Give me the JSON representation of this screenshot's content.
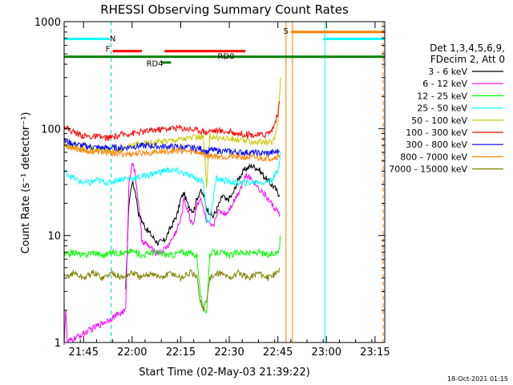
{
  "chart_data": {
    "type": "line",
    "title": "RHESSI Observing Summary Count Rates",
    "xlabel": "Start Time (02-May-03 21:39:22)",
    "ylabel": "Count Rate (s⁻¹ detector⁻¹)",
    "yscale": "log",
    "ylim": [
      1,
      1000
    ],
    "xlim": [
      0,
      99
    ],
    "y_ticks": [
      {
        "v": 1,
        "label": "1"
      },
      {
        "v": 10,
        "label": "10"
      },
      {
        "v": 100,
        "label": "100"
      },
      {
        "v": 1000,
        "label": "1000"
      }
    ],
    "x_ticks": [
      {
        "t": 6,
        "label": "21:45"
      },
      {
        "t": 21,
        "label": "22:00"
      },
      {
        "t": 36,
        "label": "22:15"
      },
      {
        "t": 51,
        "label": "22:30"
      },
      {
        "t": 66,
        "label": "22:45"
      },
      {
        "t": 81,
        "label": "23:00"
      },
      {
        "t": 96,
        "label": "23:15"
      }
    ],
    "legend_header": [
      "Det 1,3,4,5,6,9,",
      "FDecim 2, Att 0"
    ],
    "series": [
      {
        "name": "3 - 6 keV",
        "color": "#000000",
        "pts": [
          [
            19,
            3
          ],
          [
            20,
            20
          ],
          [
            21,
            32
          ],
          [
            22,
            26
          ],
          [
            23,
            16
          ],
          [
            25,
            12
          ],
          [
            27,
            10
          ],
          [
            29,
            8.5
          ],
          [
            31,
            9
          ],
          [
            33,
            12
          ],
          [
            35,
            16
          ],
          [
            36,
            22
          ],
          [
            37,
            25
          ],
          [
            38,
            20
          ],
          [
            39,
            18
          ],
          [
            40,
            17
          ],
          [
            41,
            22
          ],
          [
            42,
            26
          ],
          [
            43,
            24
          ],
          [
            44,
            18
          ],
          [
            46,
            15
          ],
          [
            48,
            20
          ],
          [
            49,
            24
          ],
          [
            50,
            21
          ],
          [
            52,
            24
          ],
          [
            54,
            35
          ],
          [
            56,
            42
          ],
          [
            58,
            45
          ],
          [
            60,
            42
          ],
          [
            62,
            35
          ],
          [
            64,
            30
          ],
          [
            65,
            28
          ],
          [
            66,
            25
          ],
          [
            66.5,
            24
          ]
        ]
      },
      {
        "name": "6 - 12 keV",
        "color": "#ff00ff",
        "pts": [
          [
            0,
            1
          ],
          [
            0.5,
            2
          ],
          [
            1,
            1
          ],
          [
            19,
            2
          ],
          [
            20,
            30
          ],
          [
            21,
            50
          ],
          [
            22,
            36
          ],
          [
            23,
            20
          ],
          [
            24,
            9
          ],
          [
            26,
            8
          ],
          [
            28,
            7
          ],
          [
            30,
            7
          ],
          [
            32,
            8
          ],
          [
            34,
            10
          ],
          [
            36,
            14
          ],
          [
            37,
            22
          ],
          [
            38,
            18
          ],
          [
            39,
            14
          ],
          [
            40,
            13
          ],
          [
            41,
            20
          ],
          [
            42,
            22
          ],
          [
            43,
            18
          ],
          [
            44,
            13
          ],
          [
            46,
            12
          ],
          [
            47,
            16
          ],
          [
            48,
            17
          ],
          [
            50,
            16
          ],
          [
            52,
            20
          ],
          [
            54,
            26
          ],
          [
            56,
            36
          ],
          [
            58,
            34
          ],
          [
            60,
            28
          ],
          [
            62,
            24
          ],
          [
            64,
            20
          ],
          [
            65,
            18
          ],
          [
            66,
            17
          ],
          [
            66.5,
            15
          ]
        ]
      },
      {
        "name": "12 - 25 keV",
        "color": "#00ff00",
        "pts": [
          [
            0,
            6.5
          ],
          [
            3,
            7
          ],
          [
            6,
            6.5
          ],
          [
            9,
            7
          ],
          [
            12,
            6.5
          ],
          [
            15,
            7
          ],
          [
            18,
            6.8
          ],
          [
            21,
            7.2
          ],
          [
            24,
            6.5
          ],
          [
            27,
            7
          ],
          [
            30,
            6.8
          ],
          [
            33,
            6.5
          ],
          [
            36,
            7
          ],
          [
            39,
            6.8
          ],
          [
            41,
            6.5
          ],
          [
            42,
            3
          ],
          [
            43,
            2
          ],
          [
            44,
            2
          ],
          [
            45,
            6.8
          ],
          [
            48,
            7
          ],
          [
            51,
            6.5
          ],
          [
            54,
            7
          ],
          [
            57,
            6.8
          ],
          [
            60,
            7
          ],
          [
            63,
            6.5
          ],
          [
            66,
            7
          ],
          [
            66.5,
            8
          ],
          [
            66.7,
            10
          ]
        ]
      },
      {
        "name": "25 - 50 keV",
        "color": "#00ffff",
        "pts": [
          [
            0,
            40
          ],
          [
            2,
            36
          ],
          [
            4,
            33
          ],
          [
            6,
            31
          ],
          [
            8,
            31
          ],
          [
            10,
            33
          ],
          [
            12,
            32
          ],
          [
            14,
            31
          ],
          [
            16,
            33
          ],
          [
            18,
            34
          ],
          [
            20,
            34
          ],
          [
            23,
            35
          ],
          [
            26,
            37
          ],
          [
            29,
            39
          ],
          [
            32,
            41
          ],
          [
            35,
            40
          ],
          [
            37,
            38
          ],
          [
            39,
            36
          ],
          [
            40,
            35
          ],
          [
            41,
            34
          ],
          [
            43,
            32
          ],
          [
            44,
            14
          ],
          [
            45,
            14
          ],
          [
            46,
            22
          ],
          [
            47,
            34
          ],
          [
            49,
            33
          ],
          [
            51,
            32
          ],
          [
            54,
            31
          ],
          [
            57,
            31
          ],
          [
            60,
            32
          ],
          [
            62,
            31
          ],
          [
            64,
            33
          ],
          [
            65,
            36
          ],
          [
            66,
            40
          ],
          [
            66.5,
            50
          ],
          [
            66.7,
            60
          ]
        ]
      },
      {
        "name": "50 - 100 keV",
        "color": "#c8c800",
        "pts": [
          [
            0,
            70
          ],
          [
            3,
            68
          ],
          [
            6,
            66
          ],
          [
            9,
            64
          ],
          [
            12,
            64
          ],
          [
            15,
            63
          ],
          [
            18,
            64
          ],
          [
            21,
            70
          ],
          [
            24,
            72
          ],
          [
            27,
            74
          ],
          [
            30,
            76
          ],
          [
            33,
            78
          ],
          [
            36,
            80
          ],
          [
            39,
            82
          ],
          [
            42,
            83
          ],
          [
            43,
            85
          ],
          [
            44,
            28
          ],
          [
            45,
            85
          ],
          [
            48,
            82
          ],
          [
            51,
            80
          ],
          [
            54,
            78
          ],
          [
            57,
            76
          ],
          [
            60,
            75
          ],
          [
            62,
            74
          ],
          [
            64,
            75
          ],
          [
            65,
            80
          ],
          [
            66,
            120
          ],
          [
            66.5,
            200
          ],
          [
            66.8,
            300
          ]
        ]
      },
      {
        "name": "100 - 300 keV",
        "color": "#ff0000",
        "pts": [
          [
            0,
            105
          ],
          [
            2,
            96
          ],
          [
            4,
            90
          ],
          [
            6,
            86
          ],
          [
            8,
            84
          ],
          [
            10,
            84
          ],
          [
            12,
            82
          ],
          [
            14,
            82
          ],
          [
            16,
            84
          ],
          [
            18,
            88
          ],
          [
            20,
            90
          ],
          [
            23,
            92
          ],
          [
            26,
            95
          ],
          [
            29,
            98
          ],
          [
            32,
            100
          ],
          [
            35,
            102
          ],
          [
            38,
            100
          ],
          [
            41,
            97
          ],
          [
            43,
            95
          ],
          [
            44,
            92
          ],
          [
            45,
            96
          ],
          [
            48,
            95
          ],
          [
            51,
            93
          ],
          [
            54,
            90
          ],
          [
            57,
            88
          ],
          [
            60,
            87
          ],
          [
            62,
            88
          ],
          [
            64,
            95
          ],
          [
            65,
            110
          ],
          [
            66,
            140
          ],
          [
            66.5,
            180
          ]
        ]
      },
      {
        "name": "300 - 800 keV",
        "color": "#0000ff",
        "pts": [
          [
            0,
            77
          ],
          [
            3,
            72
          ],
          [
            6,
            69
          ],
          [
            9,
            67
          ],
          [
            12,
            66
          ],
          [
            15,
            66
          ],
          [
            18,
            66
          ],
          [
            21,
            68
          ],
          [
            24,
            69
          ],
          [
            27,
            69
          ],
          [
            30,
            68
          ],
          [
            33,
            68
          ],
          [
            36,
            67
          ],
          [
            39,
            66
          ],
          [
            42,
            65
          ],
          [
            43,
            64
          ],
          [
            44,
            60
          ],
          [
            45,
            63
          ],
          [
            48,
            62
          ],
          [
            51,
            61
          ],
          [
            54,
            60
          ],
          [
            57,
            60
          ],
          [
            60,
            59
          ],
          [
            63,
            59
          ],
          [
            65,
            60
          ],
          [
            66.5,
            62
          ]
        ]
      },
      {
        "name": "800 - 7000 keV",
        "color": "#ff8000",
        "pts": [
          [
            0,
            70
          ],
          [
            3,
            66
          ],
          [
            6,
            63
          ],
          [
            9,
            61
          ],
          [
            12,
            60
          ],
          [
            15,
            59
          ],
          [
            18,
            58
          ],
          [
            21,
            58
          ],
          [
            24,
            59
          ],
          [
            27,
            60
          ],
          [
            30,
            61
          ],
          [
            33,
            62
          ],
          [
            36,
            62
          ],
          [
            39,
            61
          ],
          [
            42,
            60
          ],
          [
            43,
            58
          ],
          [
            44,
            55
          ],
          [
            45,
            56
          ],
          [
            48,
            55
          ],
          [
            51,
            55
          ],
          [
            54,
            54
          ],
          [
            57,
            54
          ],
          [
            60,
            53
          ],
          [
            63,
            53
          ],
          [
            65,
            54
          ],
          [
            66.5,
            56
          ]
        ]
      },
      {
        "name": "7000 - 15000 keV",
        "color": "#808000",
        "pts": [
          [
            0,
            4
          ],
          [
            3,
            4.5
          ],
          [
            6,
            4
          ],
          [
            9,
            4.5
          ],
          [
            12,
            4
          ],
          [
            15,
            4.5
          ],
          [
            18,
            4
          ],
          [
            21,
            4.5
          ],
          [
            24,
            4
          ],
          [
            27,
            4.5
          ],
          [
            30,
            4
          ],
          [
            33,
            4.5
          ],
          [
            36,
            4
          ],
          [
            39,
            4.5
          ],
          [
            41,
            4
          ],
          [
            42,
            2.5
          ],
          [
            43,
            2
          ],
          [
            44,
            2.5
          ],
          [
            45,
            4
          ],
          [
            48,
            4.5
          ],
          [
            51,
            4
          ],
          [
            54,
            4.5
          ],
          [
            57,
            4
          ],
          [
            60,
            4.5
          ],
          [
            63,
            4
          ],
          [
            66,
            4.5
          ],
          [
            66.5,
            5
          ]
        ]
      }
    ],
    "flag_bars": [
      {
        "name": "N",
        "color": "#00ffff",
        "segments": [
          [
            0,
            14
          ],
          [
            80,
            99
          ]
        ],
        "y": 690,
        "label_t": 15,
        "label_y": 700
      },
      {
        "name": "S",
        "color": "#ff8000",
        "segments": [
          [
            70,
            99
          ]
        ],
        "y": 800,
        "label_t": 68.5,
        "label_y": 830
      },
      {
        "name": "F",
        "color": "#ff0000",
        "segments": [
          [
            15,
            24
          ],
          [
            31,
            56
          ]
        ],
        "y": 530,
        "label_t": 13.5,
        "label_y": 560
      },
      {
        "name": "RD0",
        "color": "#008000",
        "segments": [
          [
            0,
            99
          ]
        ],
        "y": 470,
        "label_t": 50,
        "label_y": 480
      },
      {
        "name": "RD4",
        "color": "#008000",
        "segments": [
          [
            30,
            33
          ]
        ],
        "y": 415,
        "label_t": 28,
        "label_y": 410
      }
    ],
    "vlines": [
      {
        "t": 14.5,
        "color": "#00cccc",
        "dashed": true
      },
      {
        "t": 68.5,
        "color": "#ff8000",
        "dashed": false
      },
      {
        "t": 70.5,
        "color": "#ff8000",
        "dashed": false
      },
      {
        "t": 80.5,
        "color": "#00ffff",
        "dashed": false
      },
      {
        "t": 98.5,
        "color": "#ff8000",
        "dashed": true
      }
    ],
    "footer": "18-Oct-2021 01:15"
  }
}
